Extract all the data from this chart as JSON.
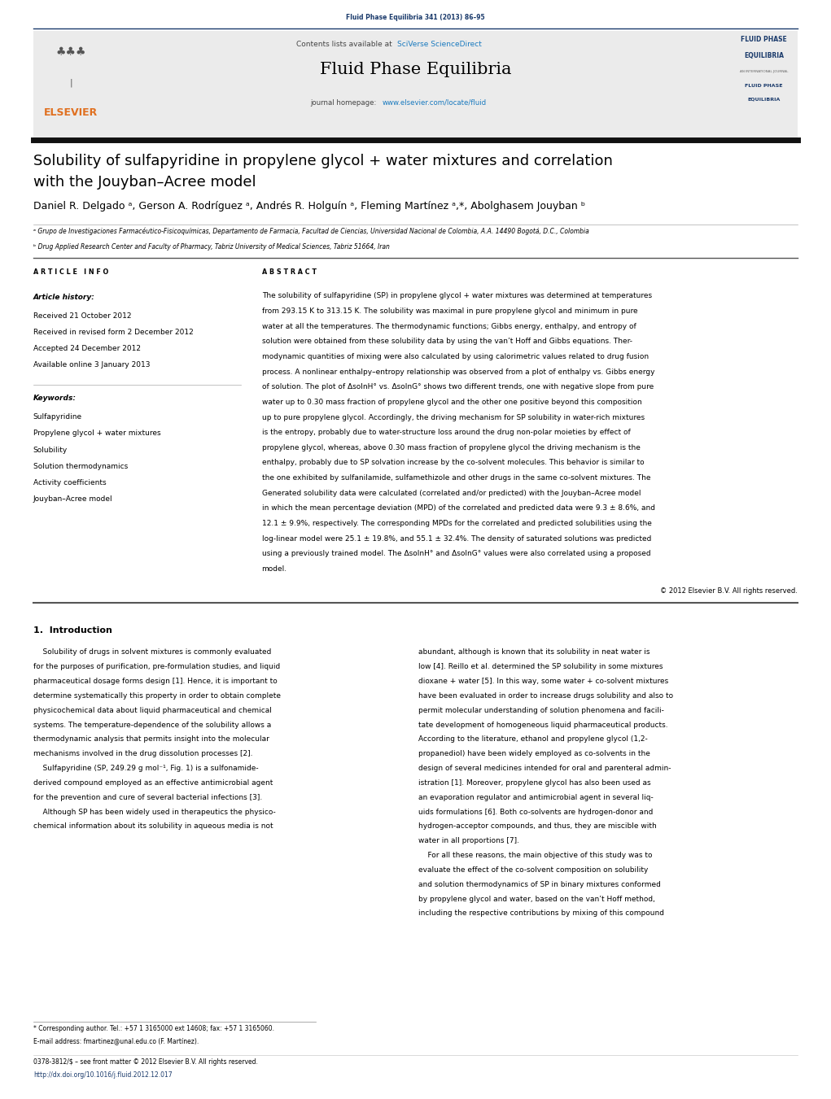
{
  "bg_color": "#ffffff",
  "page_width": 10.21,
  "page_height": 13.51,
  "top_header_text": "Fluid Phase Equilibria 341 (2013) 86–95",
  "top_header_color": "#1a3a6b",
  "journal_header_bg": "#e8e8e8",
  "journal_name": "Fluid Phase Equilibria",
  "sciverse_color": "#1a7abf",
  "homepage_url_color": "#1a7abf",
  "affiliation_a": "ᵃ Grupo de Investigaciones Farmacéutico-Fisicoquímicas, Departamento de Farmacia, Facultad de Ciencias, Universidad Nacional de Colombia, A.A. 14490 Bogotá, D.C., Colombia",
  "affiliation_b": "ᵇ Drug Applied Research Center and Faculty of Pharmacy, Tabriz University of Medical Sciences, Tabriz 51664, Iran",
  "received": "Received 21 October 2012",
  "revised": "Received in revised form 2 December 2012",
  "accepted": "Accepted 24 December 2012",
  "available": "Available online 3 January 2013",
  "keywords": [
    "Sulfapyridine",
    "Propylene glycol + water mixtures",
    "Solubility",
    "Solution thermodynamics",
    "Activity coefficients",
    "Jouyban–Acree model"
  ],
  "abstract_lines": [
    "The solubility of sulfapyridine (SP) in propylene glycol + water mixtures was determined at temperatures",
    "from 293.15 K to 313.15 K. The solubility was maximal in pure propylene glycol and minimum in pure",
    "water at all the temperatures. The thermodynamic functions; Gibbs energy, enthalpy, and entropy of",
    "solution were obtained from these solubility data by using the van’t Hoff and Gibbs equations. Ther-",
    "modynamic quantities of mixing were also calculated by using calorimetric values related to drug fusion",
    "process. A nonlinear enthalpy–entropy relationship was observed from a plot of enthalpy vs. Gibbs energy",
    "of solution. The plot of ΔsolnH° vs. ΔsolnG° shows two different trends, one with negative slope from pure",
    "water up to 0.30 mass fraction of propylene glycol and the other one positive beyond this composition",
    "up to pure propylene glycol. Accordingly, the driving mechanism for SP solubility in water-rich mixtures",
    "is the entropy, probably due to water-structure loss around the drug non-polar moieties by effect of",
    "propylene glycol, whereas, above 0.30 mass fraction of propylene glycol the driving mechanism is the",
    "enthalpy, probably due to SP solvation increase by the co-solvent molecules. This behavior is similar to",
    "the one exhibited by sulfanilamide, sulfamethizole and other drugs in the same co-solvent mixtures. The",
    "Generated solubility data were calculated (correlated and/or predicted) with the Jouyban–Acree model",
    "in which the mean percentage deviation (MPD) of the correlated and predicted data were 9.3 ± 8.6%, and",
    "12.1 ± 9.9%, respectively. The corresponding MPDs for the correlated and predicted solubilities using the",
    "log-linear model were 25.1 ± 19.8%, and 55.1 ± 32.4%. The density of saturated solutions was predicted",
    "using a previously trained model. The ΔsolnH° and ΔsolnG° values were also correlated using a proposed",
    "model."
  ],
  "copyright_line": "© 2012 Elsevier B.V. All rights reserved.",
  "intro_col1_lines": [
    "    Solubility of drugs in solvent mixtures is commonly evaluated",
    "for the purposes of purification, pre-formulation studies, and liquid",
    "pharmaceutical dosage forms design [1]. Hence, it is important to",
    "determine systematically this property in order to obtain complete",
    "physicochemical data about liquid pharmaceutical and chemical",
    "systems. The temperature-dependence of the solubility allows a",
    "thermodynamic analysis that permits insight into the molecular",
    "mechanisms involved in the drug dissolution processes [2].",
    "    Sulfapyridine (SP, 249.29 g mol⁻¹, Fig. 1) is a sulfonamide-",
    "derived compound employed as an effective antimicrobial agent",
    "for the prevention and cure of several bacterial infections [3].",
    "    Although SP has been widely used in therapeutics the physico-",
    "chemical information about its solubility in aqueous media is not"
  ],
  "intro_col2_lines": [
    "abundant, although is known that its solubility in neat water is",
    "low [4]. Reillo et al. determined the SP solubility in some mixtures",
    "dioxane + water [5]. In this way, some water + co-solvent mixtures",
    "have been evaluated in order to increase drugs solubility and also to",
    "permit molecular understanding of solution phenomena and facili-",
    "tate development of homogeneous liquid pharmaceutical products.",
    "According to the literature, ethanol and propylene glycol (1,2-",
    "propanediol) have been widely employed as co-solvents in the",
    "design of several medicines intended for oral and parenteral admin-",
    "istration [1]. Moreover, propylene glycol has also been used as",
    "an evaporation regulator and antimicrobial agent in several liq-",
    "uids formulations [6]. Both co-solvents are hydrogen-donor and",
    "hydrogen-acceptor compounds, and thus, they are miscible with",
    "water in all proportions [7].",
    "    For all these reasons, the main objective of this study was to",
    "evaluate the effect of the co-solvent composition on solubility",
    "and solution thermodynamics of SP in binary mixtures conformed",
    "by propylene glycol and water, based on the van’t Hoff method,",
    "including the respective contributions by mixing of this compound"
  ],
  "footer_line1": "0378-3812/$ – see front matter © 2012 Elsevier B.V. All rights reserved.",
  "footer_line2": "http://dx.doi.org/10.1016/j.fluid.2012.12.017",
  "footer_color": "#1a3a6b",
  "elsevier_color": "#e07020",
  "corresponding_note": "* Corresponding author. Tel.: +57 1 3165000 ext 14608; fax: +57 1 3165060.",
  "email_note": "E-mail address: fmartinez@unal.edu.co (F. Martínez)."
}
